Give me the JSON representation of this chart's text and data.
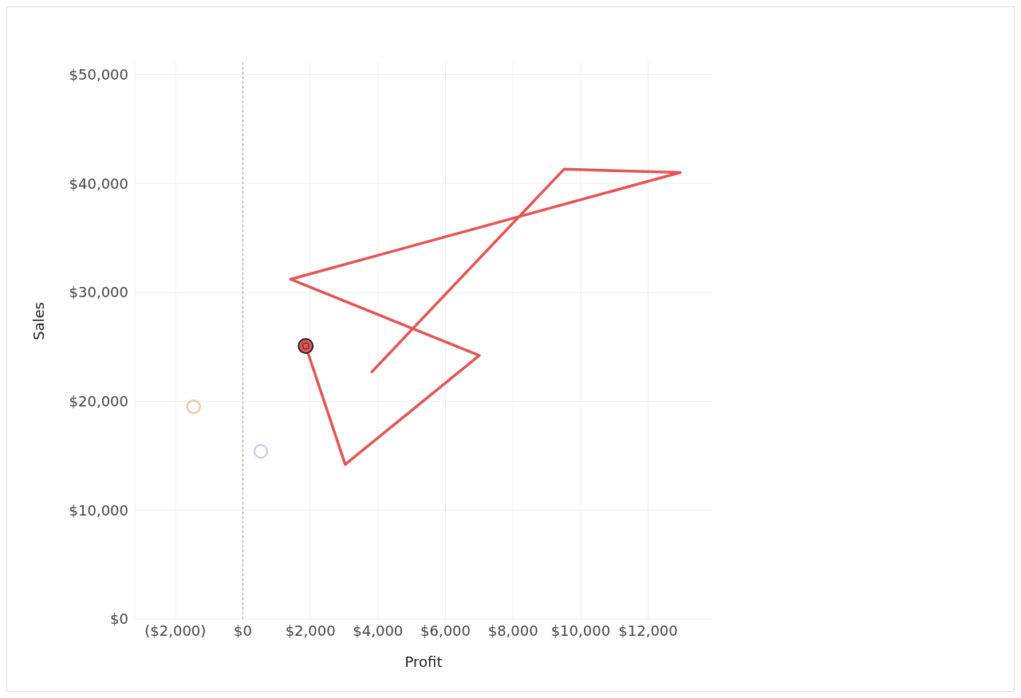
{
  "chart_data": {
    "type": "scatter",
    "xlabel": "Profit",
    "ylabel": "Sales",
    "xlim": [
      -3200,
      13900
    ],
    "ylim": [
      0,
      51200
    ],
    "xticks": [
      {
        "value": -2000,
        "label": "($2,000)"
      },
      {
        "value": 0,
        "label": "$0"
      },
      {
        "value": 2000,
        "label": "$2,000"
      },
      {
        "value": 4000,
        "label": "$4,000"
      },
      {
        "value": 6000,
        "label": "$6,000"
      },
      {
        "value": 8000,
        "label": "$8,000"
      },
      {
        "value": 10000,
        "label": "$10,000"
      },
      {
        "value": 12000,
        "label": "$12,000"
      }
    ],
    "yticks": [
      {
        "value": 0,
        "label": "$0"
      },
      {
        "value": 10000,
        "label": "$10,000"
      },
      {
        "value": 20000,
        "label": "$20,000"
      },
      {
        "value": 30000,
        "label": "$30,000"
      },
      {
        "value": 40000,
        "label": "$40,000"
      },
      {
        "value": 50000,
        "label": "$50,000"
      }
    ],
    "grid": true,
    "ref_lines": [
      {
        "axis": "x",
        "value": 0,
        "color": "#9a9a9a",
        "line_style": "dashed"
      }
    ],
    "series": [
      {
        "type": "line",
        "color": "#e15759",
        "marker": "none",
        "line_style": "solid",
        "x": [
          1860,
          3030,
          7000,
          1410,
          12950,
          9510,
          3820
        ],
        "values": [
          25070,
          14200,
          24200,
          31200,
          41000,
          41300,
          22700
        ]
      },
      {
        "color": "#f2c8a8",
        "marker": "circle",
        "x": [
          -1460
        ],
        "values": [
          19500
        ]
      },
      {
        "color": "#c8d2e2",
        "marker": "circle",
        "x": [
          530
        ],
        "values": [
          15400
        ]
      },
      {
        "color": "#e15759",
        "marker": "circle",
        "x": [
          1860
        ],
        "values": [
          25070
        ]
      }
    ]
  }
}
